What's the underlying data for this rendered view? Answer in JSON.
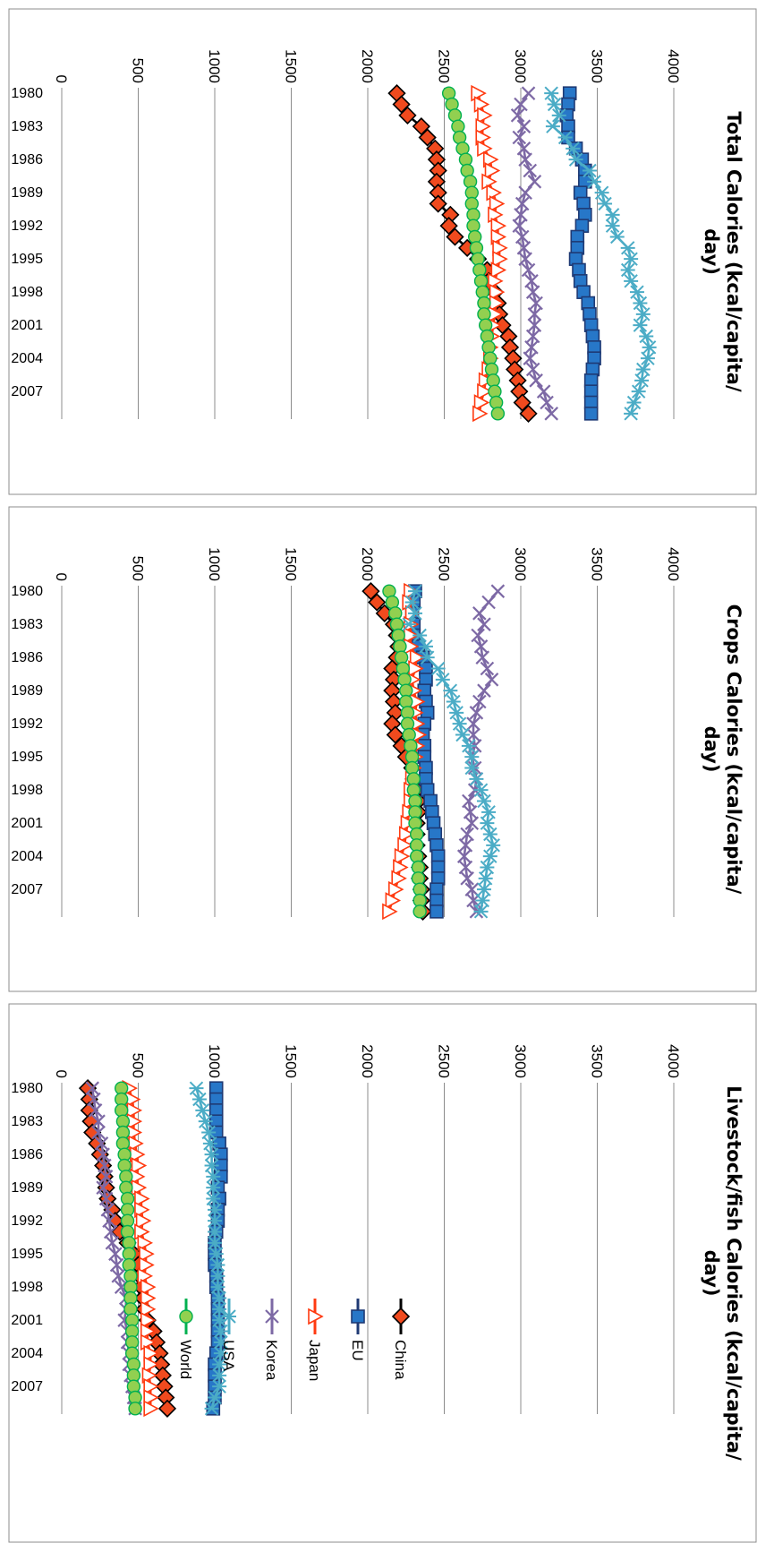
{
  "chart_data": [
    {
      "type": "line",
      "title": "Total Calories (kcal/capita/ day)",
      "title_lines": [
        "Total Calories (kcal/capita/",
        "day)"
      ],
      "x": [
        1980,
        1981,
        1982,
        1983,
        1984,
        1985,
        1986,
        1987,
        1988,
        1989,
        1990,
        1991,
        1992,
        1993,
        1994,
        1995,
        1996,
        1997,
        1998,
        1999,
        2000,
        2001,
        2002,
        2003,
        2004,
        2005,
        2006,
        2007,
        2008,
        2009
      ],
      "x_tick_labels": [
        "1980",
        "1983",
        "1986",
        "1989",
        "1992",
        "1995",
        "1998",
        "2001",
        "2004",
        "2007"
      ],
      "ylim": [
        0,
        4000
      ],
      "y_ticks": [
        0,
        500,
        1000,
        1500,
        2000,
        2500,
        3000,
        3500,
        4000
      ],
      "grid": true,
      "series": [
        {
          "name": "China",
          "values": [
            2190,
            2220,
            2260,
            2350,
            2390,
            2440,
            2450,
            2460,
            2450,
            2460,
            2460,
            2540,
            2530,
            2570,
            2650,
            2720,
            2780,
            2790,
            2830,
            2850,
            2860,
            2880,
            2920,
            2930,
            2950,
            2960,
            2980,
            2990,
            3010,
            3050
          ]
        },
        {
          "name": "EU",
          "values": [
            3320,
            3310,
            3300,
            3310,
            3310,
            3360,
            3400,
            3420,
            3420,
            3390,
            3410,
            3420,
            3400,
            3370,
            3370,
            3360,
            3380,
            3390,
            3410,
            3440,
            3450,
            3460,
            3470,
            3480,
            3480,
            3470,
            3460,
            3460,
            3460,
            3460
          ]
        },
        {
          "name": "Japan",
          "values": [
            2720,
            2740,
            2760,
            2750,
            2750,
            2760,
            2800,
            2810,
            2790,
            2820,
            2840,
            2830,
            2850,
            2850,
            2860,
            2860,
            2850,
            2830,
            2840,
            2840,
            2830,
            2820,
            2810,
            2800,
            2800,
            2790,
            2770,
            2760,
            2740,
            2730
          ]
        },
        {
          "name": "Korea",
          "values": [
            3050,
            3000,
            2980,
            3020,
            2990,
            3020,
            3030,
            3060,
            3090,
            3030,
            3010,
            3000,
            2990,
            3010,
            3020,
            3030,
            3050,
            3070,
            3080,
            3100,
            3090,
            3090,
            3080,
            3070,
            3060,
            3080,
            3100,
            3150,
            3170,
            3200
          ]
        },
        {
          "name": "USA",
          "values": [
            3200,
            3220,
            3250,
            3210,
            3290,
            3340,
            3360,
            3450,
            3480,
            3530,
            3550,
            3600,
            3600,
            3630,
            3700,
            3720,
            3700,
            3720,
            3760,
            3780,
            3800,
            3780,
            3820,
            3840,
            3830,
            3800,
            3790,
            3770,
            3740,
            3720
          ]
        },
        {
          "name": "World",
          "values": [
            2530,
            2550,
            2570,
            2590,
            2600,
            2620,
            2640,
            2650,
            2670,
            2680,
            2680,
            2690,
            2690,
            2700,
            2710,
            2720,
            2730,
            2740,
            2750,
            2760,
            2760,
            2770,
            2780,
            2790,
            2800,
            2810,
            2820,
            2830,
            2840,
            2850
          ]
        }
      ]
    },
    {
      "type": "line",
      "title": "Crops Calories (kcal/capita/ day)",
      "title_lines": [
        "Crops Calories (kcal/capita/",
        "day)"
      ],
      "x": [
        1980,
        1981,
        1982,
        1983,
        1984,
        1985,
        1986,
        1987,
        1988,
        1989,
        1990,
        1991,
        1992,
        1993,
        1994,
        1995,
        1996,
        1997,
        1998,
        1999,
        2000,
        2001,
        2002,
        2003,
        2004,
        2005,
        2006,
        2007,
        2008,
        2009
      ],
      "x_tick_labels": [
        "1980",
        "1983",
        "1986",
        "1989",
        "1992",
        "1995",
        "1998",
        "2001",
        "2004",
        "2007"
      ],
      "ylim": [
        0,
        4000
      ],
      "y_ticks": [
        0,
        500,
        1000,
        1500,
        2000,
        2500,
        3000,
        3500,
        4000
      ],
      "grid": true,
      "series": [
        {
          "name": "China",
          "values": [
            2020,
            2060,
            2110,
            2170,
            2190,
            2200,
            2190,
            2160,
            2170,
            2160,
            2170,
            2180,
            2160,
            2180,
            2220,
            2250,
            2290,
            2300,
            2320,
            2330,
            2330,
            2320,
            2320,
            2320,
            2330,
            2340,
            2340,
            2350,
            2350,
            2360
          ]
        },
        {
          "name": "EU",
          "values": [
            2310,
            2300,
            2290,
            2300,
            2300,
            2330,
            2360,
            2380,
            2380,
            2370,
            2380,
            2390,
            2370,
            2360,
            2370,
            2370,
            2380,
            2380,
            2390,
            2410,
            2420,
            2430,
            2440,
            2450,
            2460,
            2460,
            2460,
            2450,
            2450,
            2450
          ]
        },
        {
          "name": "Japan",
          "values": [
            2280,
            2270,
            2290,
            2280,
            2280,
            2280,
            2320,
            2310,
            2290,
            2300,
            2320,
            2310,
            2320,
            2330,
            2320,
            2310,
            2300,
            2290,
            2280,
            2280,
            2270,
            2260,
            2250,
            2240,
            2220,
            2210,
            2200,
            2180,
            2160,
            2140
          ]
        },
        {
          "name": "Korea",
          "values": [
            2850,
            2790,
            2730,
            2760,
            2720,
            2740,
            2750,
            2780,
            2810,
            2760,
            2730,
            2710,
            2690,
            2690,
            2700,
            2680,
            2700,
            2710,
            2700,
            2660,
            2670,
            2680,
            2650,
            2640,
            2630,
            2640,
            2650,
            2680,
            2690,
            2710
          ]
        },
        {
          "name": "USA",
          "values": [
            2310,
            2290,
            2310,
            2270,
            2340,
            2380,
            2390,
            2460,
            2490,
            2540,
            2560,
            2580,
            2600,
            2620,
            2660,
            2680,
            2680,
            2710,
            2740,
            2760,
            2790,
            2780,
            2800,
            2820,
            2800,
            2780,
            2770,
            2760,
            2750,
            2740
          ]
        },
        {
          "name": "World",
          "values": [
            2140,
            2160,
            2180,
            2190,
            2200,
            2210,
            2220,
            2230,
            2240,
            2250,
            2250,
            2260,
            2260,
            2270,
            2280,
            2290,
            2290,
            2300,
            2300,
            2310,
            2310,
            2310,
            2320,
            2320,
            2320,
            2330,
            2330,
            2340,
            2340,
            2340
          ]
        }
      ]
    },
    {
      "type": "line",
      "title": "Livestock/fish Calories (kcal/capita/ day)",
      "title_lines": [
        "Livestock/fish Calories (kcal/capita/",
        "day)"
      ],
      "x": [
        1980,
        1981,
        1982,
        1983,
        1984,
        1985,
        1986,
        1987,
        1988,
        1989,
        1990,
        1991,
        1992,
        1993,
        1994,
        1995,
        1996,
        1997,
        1998,
        1999,
        2000,
        2001,
        2002,
        2003,
        2004,
        2005,
        2006,
        2007,
        2008,
        2009
      ],
      "x_tick_labels": [
        "1980",
        "1983",
        "1986",
        "1989",
        "1992",
        "1995",
        "1998",
        "2001",
        "2004",
        "2007"
      ],
      "ylim": [
        0,
        4000
      ],
      "y_ticks": [
        0,
        500,
        1000,
        1500,
        2000,
        2500,
        3000,
        3500,
        4000
      ],
      "grid": true,
      "series": [
        {
          "name": "China",
          "values": [
            170,
            180,
            180,
            190,
            200,
            230,
            250,
            270,
            280,
            290,
            300,
            330,
            350,
            380,
            430,
            470,
            500,
            510,
            520,
            530,
            540,
            560,
            600,
            620,
            640,
            650,
            660,
            670,
            680,
            690
          ]
        },
        {
          "name": "EU",
          "values": [
            1010,
            1010,
            1010,
            1010,
            1010,
            1030,
            1040,
            1040,
            1040,
            1020,
            1030,
            1020,
            1020,
            1010,
            1000,
            1000,
            1000,
            1010,
            1010,
            1020,
            1020,
            1020,
            1020,
            1020,
            1010,
            1000,
            1000,
            1000,
            1000,
            990
          ]
        },
        {
          "name": "Japan",
          "values": [
            440,
            460,
            470,
            470,
            470,
            480,
            490,
            500,
            490,
            500,
            520,
            520,
            530,
            520,
            540,
            550,
            550,
            540,
            560,
            560,
            560,
            560,
            560,
            560,
            580,
            580,
            570,
            580,
            580,
            580
          ]
        },
        {
          "name": "Korea",
          "values": [
            200,
            210,
            220,
            240,
            240,
            260,
            270,
            280,
            290,
            270,
            290,
            300,
            310,
            320,
            330,
            350,
            360,
            370,
            390,
            420,
            420,
            410,
            430,
            430,
            440,
            440,
            450,
            460,
            470,
            480
          ]
        },
        {
          "name": "USA",
          "values": [
            880,
            900,
            920,
            940,
            960,
            970,
            980,
            980,
            990,
            990,
            990,
            1000,
            1000,
            1000,
            1000,
            1010,
            1020,
            1020,
            1020,
            1030,
            1030,
            1030,
            1040,
            1040,
            1040,
            1030,
            1030,
            1030,
            1000,
            980
          ]
        },
        {
          "name": "World",
          "values": [
            390,
            390,
            390,
            400,
            400,
            400,
            410,
            410,
            420,
            420,
            430,
            430,
            430,
            430,
            440,
            440,
            440,
            450,
            450,
            450,
            450,
            460,
            460,
            460,
            460,
            470,
            470,
            470,
            480,
            480
          ]
        }
      ]
    }
  ],
  "legend": {
    "placement": "bottom",
    "items": [
      {
        "name": "China",
        "color": "#000000",
        "marker": "diamond",
        "fill": "#f04a1e"
      },
      {
        "name": "EU",
        "color": "#1f3a74",
        "marker": "square",
        "fill": "#2777c8"
      },
      {
        "name": "Japan",
        "color": "#ff3a10",
        "marker": "triangle",
        "fill": "#ffffff"
      },
      {
        "name": "Korea",
        "color": "#7d69a5",
        "marker": "x",
        "fill": "none"
      },
      {
        "name": "USA",
        "color": "#4bacc6",
        "marker": "star",
        "fill": "none"
      },
      {
        "name": "World",
        "color": "#00b050",
        "marker": "circle",
        "fill": "#92d050"
      }
    ]
  },
  "orientation": "rotated 90 degrees clockwise"
}
